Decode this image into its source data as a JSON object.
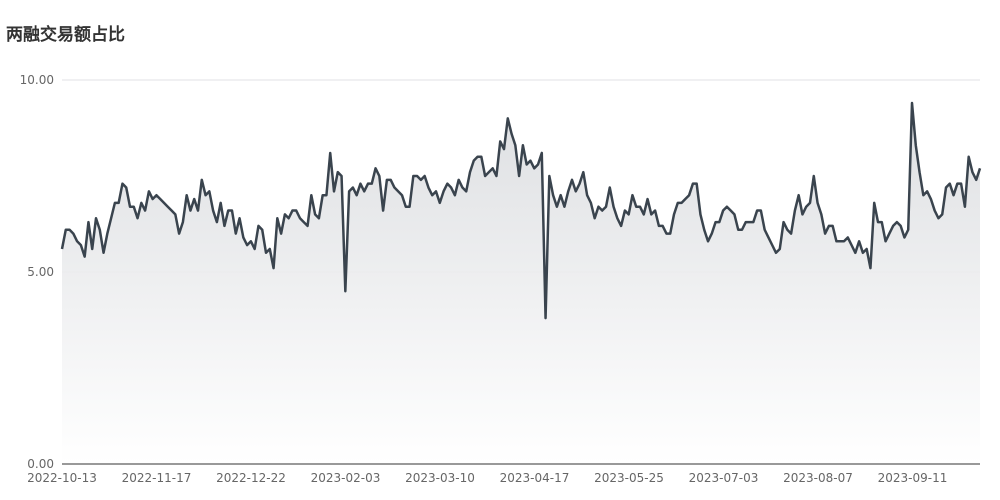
{
  "chart_data": {
    "type": "area",
    "title": "两融交易额占比",
    "xlabel": "",
    "ylabel": "",
    "ylim": [
      0,
      10
    ],
    "yticks": [
      "0.00",
      "5.00",
      "10.00"
    ],
    "xticks": [
      "2022-10-13",
      "2022-11-17",
      "2022-12-22",
      "2023-02-03",
      "2023-03-10",
      "2023-04-17",
      "2023-05-25",
      "2023-07-03",
      "2023-08-07",
      "2023-09-11"
    ],
    "grid": true,
    "legend": "none",
    "colors": {
      "line": "#3a444e",
      "fill_top": "#dadcdf",
      "fill_bottom": "#ffffff",
      "grid": "#e0e0e6",
      "axis": "#333333"
    },
    "series": [
      {
        "values": [
          5.6,
          6.1,
          6.1,
          6.0,
          5.8,
          5.7,
          5.4,
          6.3,
          5.6,
          6.4,
          6.1,
          5.5,
          6.0,
          6.4,
          6.8,
          6.8,
          7.3,
          7.2,
          6.7,
          6.7,
          6.4,
          6.8,
          6.6,
          7.1,
          6.9,
          7.0,
          6.9,
          6.8,
          6.7,
          6.6,
          6.5,
          6.0,
          6.3,
          7.0,
          6.6,
          6.9,
          6.6,
          7.4,
          7.0,
          7.1,
          6.6,
          6.3,
          6.8,
          6.2,
          6.6,
          6.6,
          6.0,
          6.4,
          5.9,
          5.7,
          5.8,
          5.6,
          6.2,
          6.1,
          5.5,
          5.6,
          5.1,
          6.4,
          6.0,
          6.5,
          6.4,
          6.6,
          6.6,
          6.4,
          6.3,
          6.2,
          7.0,
          6.5,
          6.4,
          7.0,
          7.0,
          8.1,
          7.1,
          7.6,
          7.5,
          4.5,
          7.1,
          7.2,
          7.0,
          7.3,
          7.1,
          7.3,
          7.3,
          7.7,
          7.5,
          6.6,
          7.4,
          7.4,
          7.2,
          7.1,
          7.0,
          6.7,
          6.7,
          7.5,
          7.5,
          7.4,
          7.5,
          7.2,
          7.0,
          7.1,
          6.8,
          7.1,
          7.3,
          7.2,
          7.0,
          7.4,
          7.2,
          7.1,
          7.6,
          7.9,
          8.0,
          8.0,
          7.5,
          7.6,
          7.7,
          7.5,
          8.4,
          8.2,
          9.0,
          8.6,
          8.3,
          7.5,
          8.3,
          7.8,
          7.9,
          7.7,
          7.8,
          8.1,
          3.8,
          7.5,
          7.0,
          6.7,
          7.0,
          6.7,
          7.1,
          7.4,
          7.1,
          7.3,
          7.6,
          7.0,
          6.8,
          6.4,
          6.7,
          6.6,
          6.7,
          7.2,
          6.7,
          6.4,
          6.2,
          6.6,
          6.5,
          7.0,
          6.7,
          6.7,
          6.5,
          6.9,
          6.5,
          6.6,
          6.2,
          6.2,
          6.0,
          6.0,
          6.5,
          6.8,
          6.8,
          6.9,
          7.0,
          7.3,
          7.3,
          6.5,
          6.1,
          5.8,
          6.0,
          6.3,
          6.3,
          6.6,
          6.7,
          6.6,
          6.5,
          6.1,
          6.1,
          6.3,
          6.3,
          6.3,
          6.6,
          6.6,
          6.1,
          5.9,
          5.7,
          5.5,
          5.6,
          6.3,
          6.1,
          6.0,
          6.6,
          7.0,
          6.5,
          6.7,
          6.8,
          7.5,
          6.8,
          6.5,
          6.0,
          6.2,
          6.2,
          5.8,
          5.8,
          5.8,
          5.9,
          5.7,
          5.5,
          5.8,
          5.5,
          5.6,
          5.1,
          6.8,
          6.3,
          6.3,
          5.8,
          6.0,
          6.2,
          6.3,
          6.2,
          5.9,
          6.1,
          9.4,
          8.3,
          7.6,
          7.0,
          7.1,
          6.9,
          6.6,
          6.4,
          6.5,
          7.2,
          7.3,
          7.0,
          7.3,
          7.3,
          6.7,
          8.0,
          7.6,
          7.4,
          7.7
        ]
      }
    ]
  }
}
